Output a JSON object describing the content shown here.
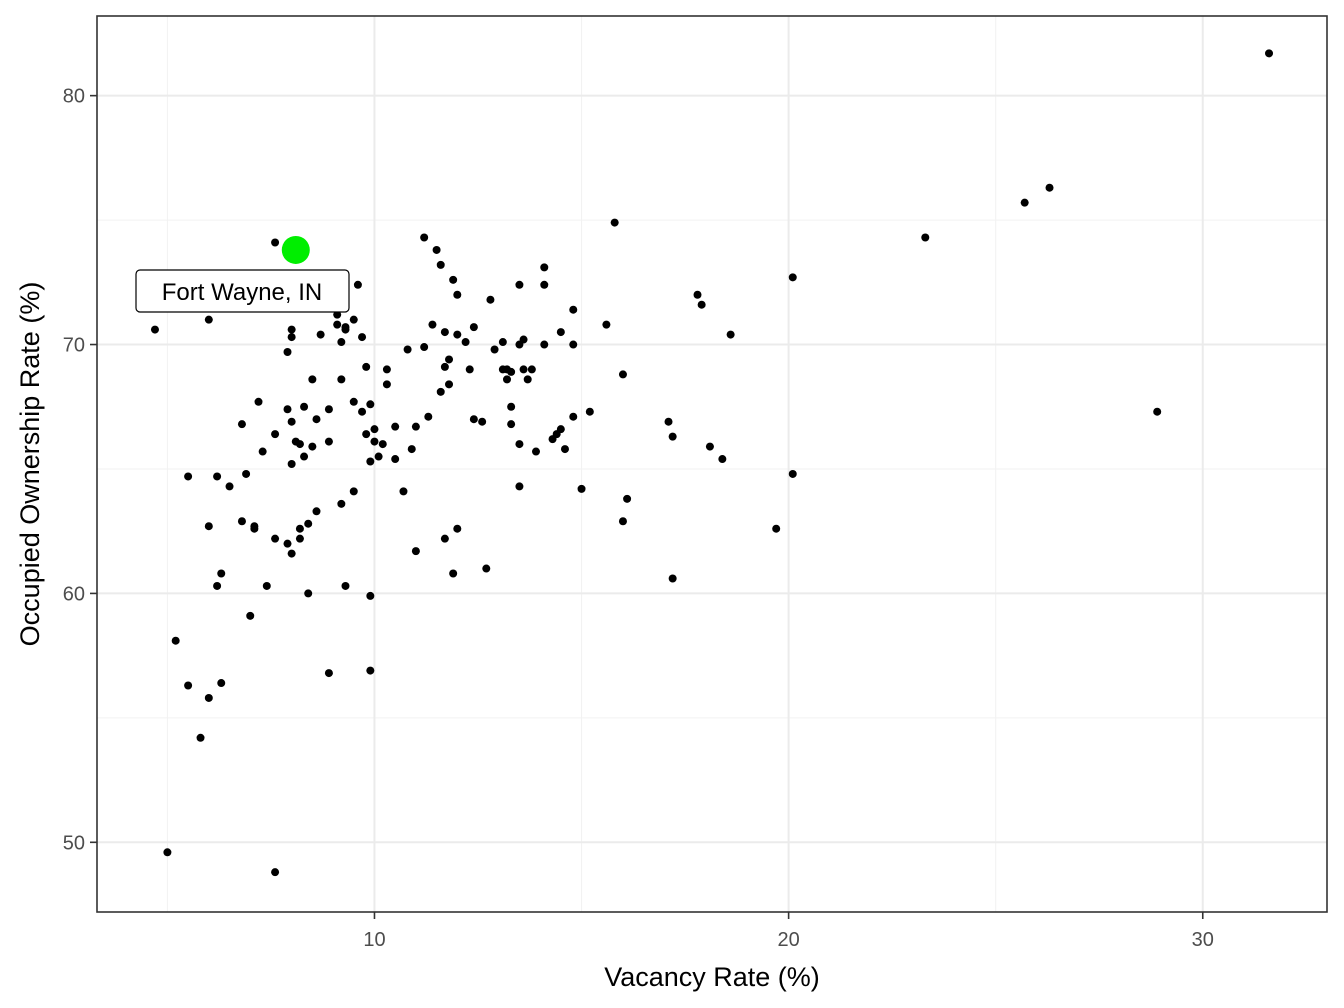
{
  "chart_data": {
    "type": "scatter",
    "title": "",
    "xlabel": "Vacancy Rate (%)",
    "ylabel": "Occupied Ownership Rate (%)",
    "xlim": [
      3.3,
      33.0
    ],
    "ylim": [
      47.2,
      83.2
    ],
    "x_ticks": [
      10,
      20,
      30
    ],
    "x_tick_labels": [
      "10",
      "20",
      "30"
    ],
    "y_ticks": [
      50,
      60,
      70,
      80
    ],
    "y_tick_labels": [
      "50",
      "60",
      "70",
      "80"
    ],
    "grid": true,
    "legend": "none",
    "highlight": {
      "label": "Fort Wayne, IN",
      "x": 8.1,
      "y": 73.8,
      "color": "#00ee00"
    },
    "point_color": "#000000",
    "points": [
      [
        4.7,
        70.6
      ],
      [
        5.0,
        49.6
      ],
      [
        5.2,
        58.1
      ],
      [
        5.5,
        64.7
      ],
      [
        5.5,
        56.3
      ],
      [
        5.8,
        54.2
      ],
      [
        6.0,
        62.7
      ],
      [
        6.0,
        55.8
      ],
      [
        6.0,
        71.0
      ],
      [
        6.2,
        60.3
      ],
      [
        6.2,
        64.7
      ],
      [
        6.3,
        60.8
      ],
      [
        6.3,
        56.4
      ],
      [
        6.5,
        64.3
      ],
      [
        6.8,
        62.9
      ],
      [
        6.8,
        66.8
      ],
      [
        6.9,
        64.8
      ],
      [
        7.0,
        59.1
      ],
      [
        7.1,
        62.6
      ],
      [
        7.1,
        62.7
      ],
      [
        7.2,
        67.7
      ],
      [
        7.3,
        65.7
      ],
      [
        7.4,
        60.3
      ],
      [
        7.6,
        62.2
      ],
      [
        7.6,
        66.4
      ],
      [
        7.6,
        74.1
      ],
      [
        7.6,
        48.8
      ],
      [
        7.9,
        62.0
      ],
      [
        7.9,
        69.7
      ],
      [
        7.9,
        67.4
      ],
      [
        8.0,
        70.3
      ],
      [
        8.0,
        70.6
      ],
      [
        8.0,
        66.9
      ],
      [
        8.0,
        65.2
      ],
      [
        8.0,
        61.6
      ],
      [
        8.1,
        66.1
      ],
      [
        8.2,
        62.6
      ],
      [
        8.2,
        62.2
      ],
      [
        8.2,
        66.0
      ],
      [
        8.3,
        65.5
      ],
      [
        8.3,
        67.5
      ],
      [
        8.4,
        60.0
      ],
      [
        8.4,
        62.8
      ],
      [
        8.5,
        68.6
      ],
      [
        8.5,
        65.9
      ],
      [
        8.6,
        67.0
      ],
      [
        8.6,
        63.3
      ],
      [
        8.7,
        70.4
      ],
      [
        8.9,
        66.1
      ],
      [
        8.9,
        67.4
      ],
      [
        8.9,
        56.8
      ],
      [
        9.1,
        70.8
      ],
      [
        9.1,
        71.2
      ],
      [
        9.2,
        68.6
      ],
      [
        9.2,
        63.6
      ],
      [
        9.2,
        70.1
      ],
      [
        9.3,
        60.3
      ],
      [
        9.3,
        70.6
      ],
      [
        9.3,
        70.7
      ],
      [
        9.5,
        64.1
      ],
      [
        9.5,
        67.7
      ],
      [
        9.5,
        71.0
      ],
      [
        9.6,
        72.4
      ],
      [
        9.7,
        67.3
      ],
      [
        9.7,
        70.3
      ],
      [
        9.8,
        66.4
      ],
      [
        9.8,
        69.1
      ],
      [
        9.9,
        65.3
      ],
      [
        9.9,
        67.6
      ],
      [
        9.9,
        56.9
      ],
      [
        9.9,
        59.9
      ],
      [
        10.0,
        66.1
      ],
      [
        10.0,
        66.6
      ],
      [
        10.1,
        65.5
      ],
      [
        10.2,
        66.0
      ],
      [
        10.3,
        68.4
      ],
      [
        10.3,
        69.0
      ],
      [
        10.5,
        66.7
      ],
      [
        10.5,
        65.4
      ],
      [
        10.7,
        64.1
      ],
      [
        10.8,
        69.8
      ],
      [
        10.9,
        65.8
      ],
      [
        11.0,
        66.7
      ],
      [
        11.0,
        61.7
      ],
      [
        11.2,
        69.9
      ],
      [
        11.2,
        74.3
      ],
      [
        11.3,
        67.1
      ],
      [
        11.4,
        70.8
      ],
      [
        11.5,
        73.8
      ],
      [
        11.6,
        73.2
      ],
      [
        11.6,
        68.1
      ],
      [
        11.7,
        62.2
      ],
      [
        11.7,
        70.5
      ],
      [
        11.7,
        69.1
      ],
      [
        11.8,
        69.4
      ],
      [
        11.8,
        68.4
      ],
      [
        11.9,
        72.6
      ],
      [
        11.9,
        60.8
      ],
      [
        12.0,
        70.4
      ],
      [
        12.0,
        72.0
      ],
      [
        12.0,
        62.6
      ],
      [
        12.2,
        70.1
      ],
      [
        12.3,
        69.0
      ],
      [
        12.4,
        67.0
      ],
      [
        12.4,
        70.7
      ],
      [
        12.6,
        66.9
      ],
      [
        12.7,
        61.0
      ],
      [
        12.8,
        71.8
      ],
      [
        12.9,
        69.8
      ],
      [
        13.1,
        69.0
      ],
      [
        13.1,
        70.1
      ],
      [
        13.2,
        68.6
      ],
      [
        13.2,
        69.0
      ],
      [
        13.3,
        66.8
      ],
      [
        13.3,
        67.5
      ],
      [
        13.3,
        68.9
      ],
      [
        13.5,
        66.0
      ],
      [
        13.5,
        72.4
      ],
      [
        13.5,
        64.3
      ],
      [
        13.5,
        70.0
      ],
      [
        13.6,
        69.0
      ],
      [
        13.6,
        70.2
      ],
      [
        13.7,
        68.6
      ],
      [
        13.8,
        69.0
      ],
      [
        13.9,
        65.7
      ],
      [
        14.1,
        70.0
      ],
      [
        14.1,
        72.4
      ],
      [
        14.1,
        73.1
      ],
      [
        14.3,
        66.2
      ],
      [
        14.4,
        66.4
      ],
      [
        14.5,
        66.6
      ],
      [
        14.5,
        70.5
      ],
      [
        14.6,
        65.8
      ],
      [
        14.8,
        67.1
      ],
      [
        14.8,
        70.0
      ],
      [
        14.8,
        71.4
      ],
      [
        15.0,
        64.2
      ],
      [
        15.2,
        67.3
      ],
      [
        15.6,
        70.8
      ],
      [
        15.8,
        74.9
      ],
      [
        16.0,
        62.9
      ],
      [
        16.0,
        68.8
      ],
      [
        16.1,
        63.8
      ],
      [
        17.1,
        66.9
      ],
      [
        17.2,
        66.3
      ],
      [
        17.2,
        60.6
      ],
      [
        17.8,
        72.0
      ],
      [
        17.9,
        71.6
      ],
      [
        18.1,
        65.9
      ],
      [
        18.4,
        65.4
      ],
      [
        18.6,
        70.4
      ],
      [
        19.7,
        62.6
      ],
      [
        20.1,
        72.7
      ],
      [
        20.1,
        64.8
      ],
      [
        23.3,
        74.3
      ],
      [
        25.7,
        75.7
      ],
      [
        26.3,
        76.3
      ],
      [
        28.9,
        67.3
      ],
      [
        31.6,
        81.7
      ]
    ]
  }
}
